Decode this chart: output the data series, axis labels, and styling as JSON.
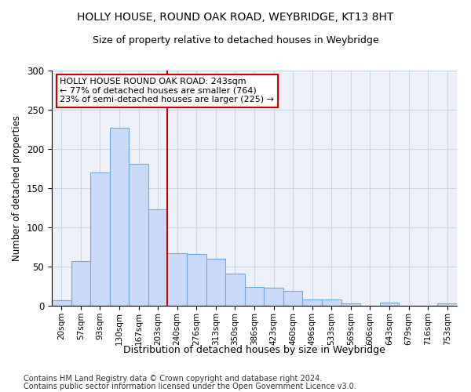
{
  "title1": "HOLLY HOUSE, ROUND OAK ROAD, WEYBRIDGE, KT13 8HT",
  "title2": "Size of property relative to detached houses in Weybridge",
  "xlabel": "Distribution of detached houses by size in Weybridge",
  "ylabel": "Number of detached properties",
  "bar_labels": [
    "20sqm",
    "57sqm",
    "93sqm",
    "130sqm",
    "167sqm",
    "203sqm",
    "240sqm",
    "276sqm",
    "313sqm",
    "350sqm",
    "386sqm",
    "423sqm",
    "460sqm",
    "496sqm",
    "533sqm",
    "569sqm",
    "606sqm",
    "643sqm",
    "679sqm",
    "716sqm",
    "753sqm"
  ],
  "bar_heights": [
    7,
    57,
    170,
    227,
    181,
    123,
    67,
    66,
    60,
    41,
    24,
    23,
    19,
    8,
    8,
    3,
    0,
    4,
    0,
    0,
    3
  ],
  "bar_color": "#c9daf8",
  "bar_edge_color": "#6fa8dc",
  "vline_color": "#cc0000",
  "annotation_line1": "HOLLY HOUSE ROUND OAK ROAD: 243sqm",
  "annotation_line2": "← 77% of detached houses are smaller (764)",
  "annotation_line3": "23% of semi-detached houses are larger (225) →",
  "annotation_box_color": "#ffffff",
  "annotation_box_edge": "#cc0000",
  "ylim": [
    0,
    300
  ],
  "yticks": [
    0,
    50,
    100,
    150,
    200,
    250,
    300
  ],
  "footer1": "Contains HM Land Registry data © Crown copyright and database right 2024.",
  "footer2": "Contains public sector information licensed under the Open Government Licence v3.0.",
  "grid_color": "#c8d8e8",
  "background_color": "#eef2f8",
  "title1_fontsize": 10,
  "title2_fontsize": 9
}
